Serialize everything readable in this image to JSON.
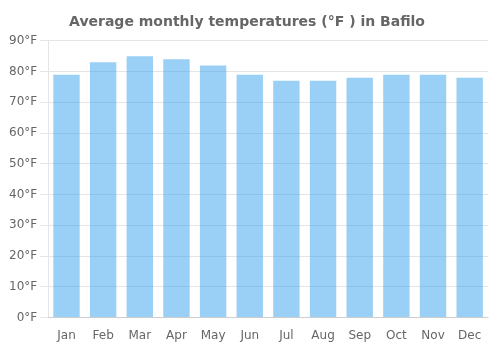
{
  "chart_data": {
    "type": "bar",
    "title": "Average monthly temperatures (°F ) in Bafilo",
    "categories": [
      "Jan",
      "Feb",
      "Mar",
      "Apr",
      "May",
      "Jun",
      "Jul",
      "Aug",
      "Sep",
      "Oct",
      "Nov",
      "Dec"
    ],
    "values": [
      79,
      83,
      85,
      84,
      82,
      79,
      77,
      77,
      78,
      79,
      79,
      78
    ],
    "ylim": [
      0,
      90
    ],
    "yticks": [
      {
        "value": 0,
        "label": "0°F"
      },
      {
        "value": 10,
        "label": "10°F"
      },
      {
        "value": 20,
        "label": "20°F"
      },
      {
        "value": 30,
        "label": "30°F"
      },
      {
        "value": 40,
        "label": "40°F"
      },
      {
        "value": 50,
        "label": "50°F"
      },
      {
        "value": 60,
        "label": "60°F"
      },
      {
        "value": 70,
        "label": "70°F"
      },
      {
        "value": 80,
        "label": "80°F"
      },
      {
        "value": 90,
        "label": "90°F"
      }
    ],
    "grid": true
  }
}
